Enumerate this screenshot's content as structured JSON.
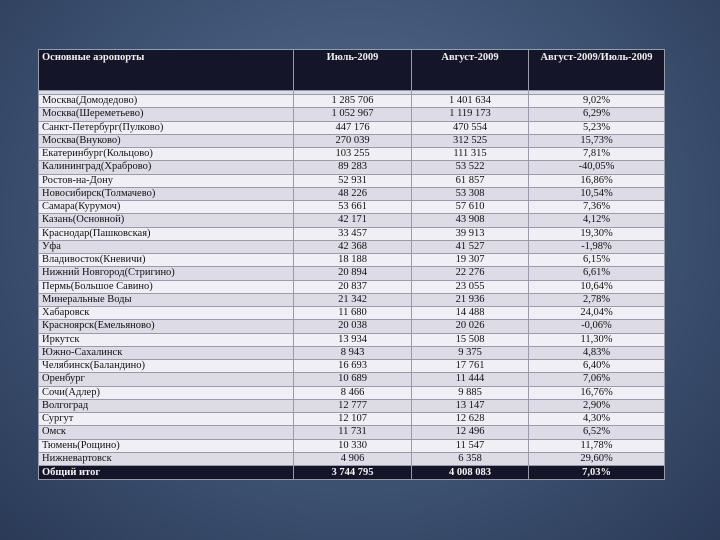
{
  "table": {
    "headers": [
      "Основные аэропорты",
      "Июль-2009",
      "Август-2009",
      "Август-2009/Июль-2009"
    ],
    "rows": [
      [
        "Москва(Домодедово)",
        "1 285 706",
        "1 401 634",
        "9,02%"
      ],
      [
        "Москва(Шереметьево)",
        "1 052 967",
        "1 119 173",
        "6,29%"
      ],
      [
        "Санкт-Петербург(Пулково)",
        "447 176",
        "470 554",
        "5,23%"
      ],
      [
        "Москва(Внуково)",
        "270 039",
        "312 525",
        "15,73%"
      ],
      [
        "Екатеринбург(Кольцово)",
        "103 255",
        "111 315",
        "7,81%"
      ],
      [
        "Калининград(Храброво)",
        "89 283",
        "53 522",
        "-40,05%"
      ],
      [
        "Ростов-на-Дону",
        "52 931",
        "61 857",
        "16,86%"
      ],
      [
        "Новосибирск(Толмачево)",
        "48 226",
        "53 308",
        "10,54%"
      ],
      [
        "Самара(Курумоч)",
        "53 661",
        "57 610",
        "7,36%"
      ],
      [
        "Казань(Основной)",
        "42 171",
        "43 908",
        "4,12%"
      ],
      [
        "Краснодар(Пашковская)",
        "33 457",
        "39 913",
        "19,30%"
      ],
      [
        "Уфа",
        "42 368",
        "41 527",
        "-1,98%"
      ],
      [
        "Владивосток(Кневичи)",
        "18 188",
        "19 307",
        "6,15%"
      ],
      [
        "Нижний Новгород(Стригино)",
        "20 894",
        "22 276",
        "6,61%"
      ],
      [
        "Пермь(Большое Савино)",
        "20 837",
        "23 055",
        "10,64%"
      ],
      [
        "Минеральные Воды",
        "21 342",
        "21 936",
        "2,78%"
      ],
      [
        "Хабаровск",
        "11 680",
        "14 488",
        "24,04%"
      ],
      [
        "Красноярск(Емельяново)",
        "20 038",
        "20 026",
        "-0,06%"
      ],
      [
        "Иркутск",
        "13 934",
        "15 508",
        "11,30%"
      ],
      [
        "Южно-Сахалинск",
        "8 943",
        "9 375",
        "4,83%"
      ],
      [
        "Челябинск(Баландино)",
        "16 693",
        "17 761",
        "6,40%"
      ],
      [
        "Оренбург",
        "10 689",
        "11 444",
        "7,06%"
      ],
      [
        "Сочи(Адлер)",
        "8 466",
        "9 885",
        "16,76%"
      ],
      [
        "Волгоград",
        "12 777",
        "13 147",
        "2,90%"
      ],
      [
        "Сургут",
        "12 107",
        "12 628",
        "4,30%"
      ],
      [
        "Омск",
        "11 731",
        "12 496",
        "6,52%"
      ],
      [
        "Тюмень(Рощино)",
        "10 330",
        "11 547",
        "11,78%"
      ],
      [
        "Нижневартовск",
        "4 906",
        "6 358",
        "29,60%"
      ]
    ],
    "total": [
      "Общий итог",
      "3 744 795",
      "4 008 083",
      "7,03%"
    ]
  }
}
